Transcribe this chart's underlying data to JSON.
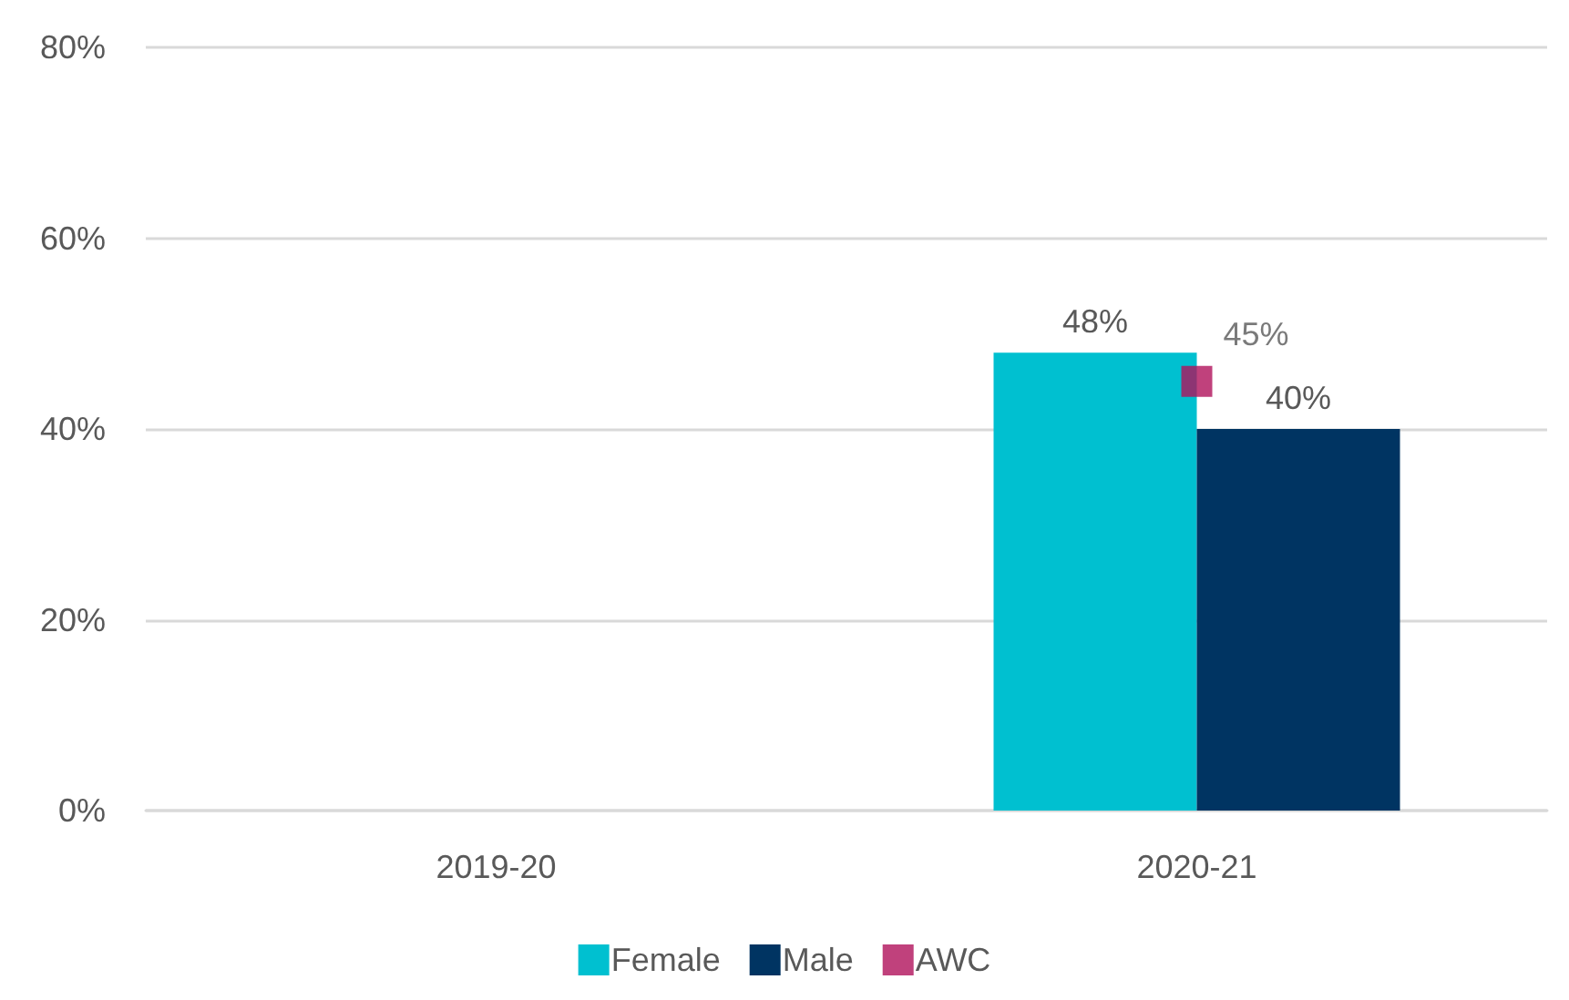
{
  "chart_data": {
    "type": "bar",
    "categories": [
      "2019-20",
      "2020-21"
    ],
    "series": [
      {
        "name": "Female",
        "color": "#00c0d0",
        "values": [
          null,
          48
        ],
        "value_labels": [
          null,
          "48%"
        ]
      },
      {
        "name": "Male",
        "color": "#003462",
        "values": [
          null,
          40
        ],
        "value_labels": [
          null,
          "40%"
        ]
      },
      {
        "name": "AWC",
        "type": "scatter",
        "marker": "square",
        "color": "#b0125b",
        "values": [
          null,
          45
        ],
        "value_labels": [
          null,
          "45%"
        ]
      }
    ],
    "ylim": [
      0,
      80
    ],
    "yticks": [
      {
        "value": 0,
        "label": "0%"
      },
      {
        "value": 20,
        "label": "20%"
      },
      {
        "value": 40,
        "label": "40%"
      },
      {
        "value": 60,
        "label": "60%"
      },
      {
        "value": 80,
        "label": "80%"
      }
    ],
    "grid": "y",
    "legend": "bottom"
  }
}
